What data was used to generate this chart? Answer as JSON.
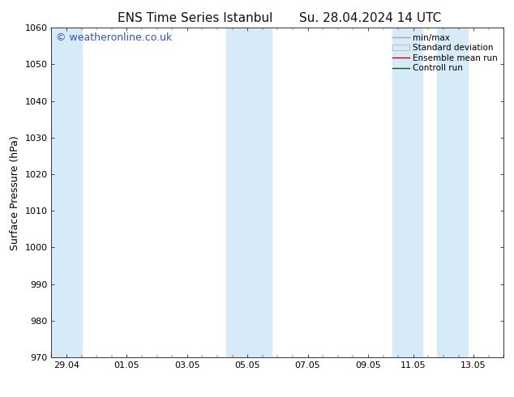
{
  "title_left": "ENS Time Series Istanbul",
  "title_right": "Su. 28.04.2024 14 UTC",
  "ylabel": "Surface Pressure (hPa)",
  "ylim": [
    970,
    1060
  ],
  "yticks": [
    970,
    980,
    990,
    1000,
    1010,
    1020,
    1030,
    1040,
    1050,
    1060
  ],
  "xtick_labels": [
    "29.04",
    "01.05",
    "03.05",
    "05.05",
    "07.05",
    "09.05",
    "11.05",
    "13.05"
  ],
  "xmin": 0.0,
  "xmax": 15.0,
  "shaded_bands": [
    {
      "x_start": 0.0,
      "x_end": 1.0,
      "color": "#d6eaf8"
    },
    {
      "x_start": 5.8,
      "x_end": 7.3,
      "color": "#d6eaf8"
    },
    {
      "x_start": 11.3,
      "x_end": 12.3,
      "color": "#d6eaf8"
    },
    {
      "x_start": 12.8,
      "x_end": 13.8,
      "color": "#d6eaf8"
    }
  ],
  "xtick_positions": [
    0.5,
    2.5,
    4.5,
    6.5,
    8.5,
    10.5,
    12.0,
    14.0
  ],
  "background_color": "#ffffff",
  "plot_bg_color": "#ffffff",
  "legend_labels": [
    "min/max",
    "Standard deviation",
    "Ensemble mean run",
    "Controll run"
  ],
  "legend_line_colors": [
    "#aaaaaa",
    "#cccccc",
    "#cc0000",
    "#006600"
  ],
  "watermark_text": "© weatheronline.co.uk",
  "watermark_color": "#3355aa",
  "title_fontsize": 11,
  "axis_label_fontsize": 9,
  "tick_fontsize": 8,
  "legend_fontsize": 7.5,
  "watermark_fontsize": 9
}
